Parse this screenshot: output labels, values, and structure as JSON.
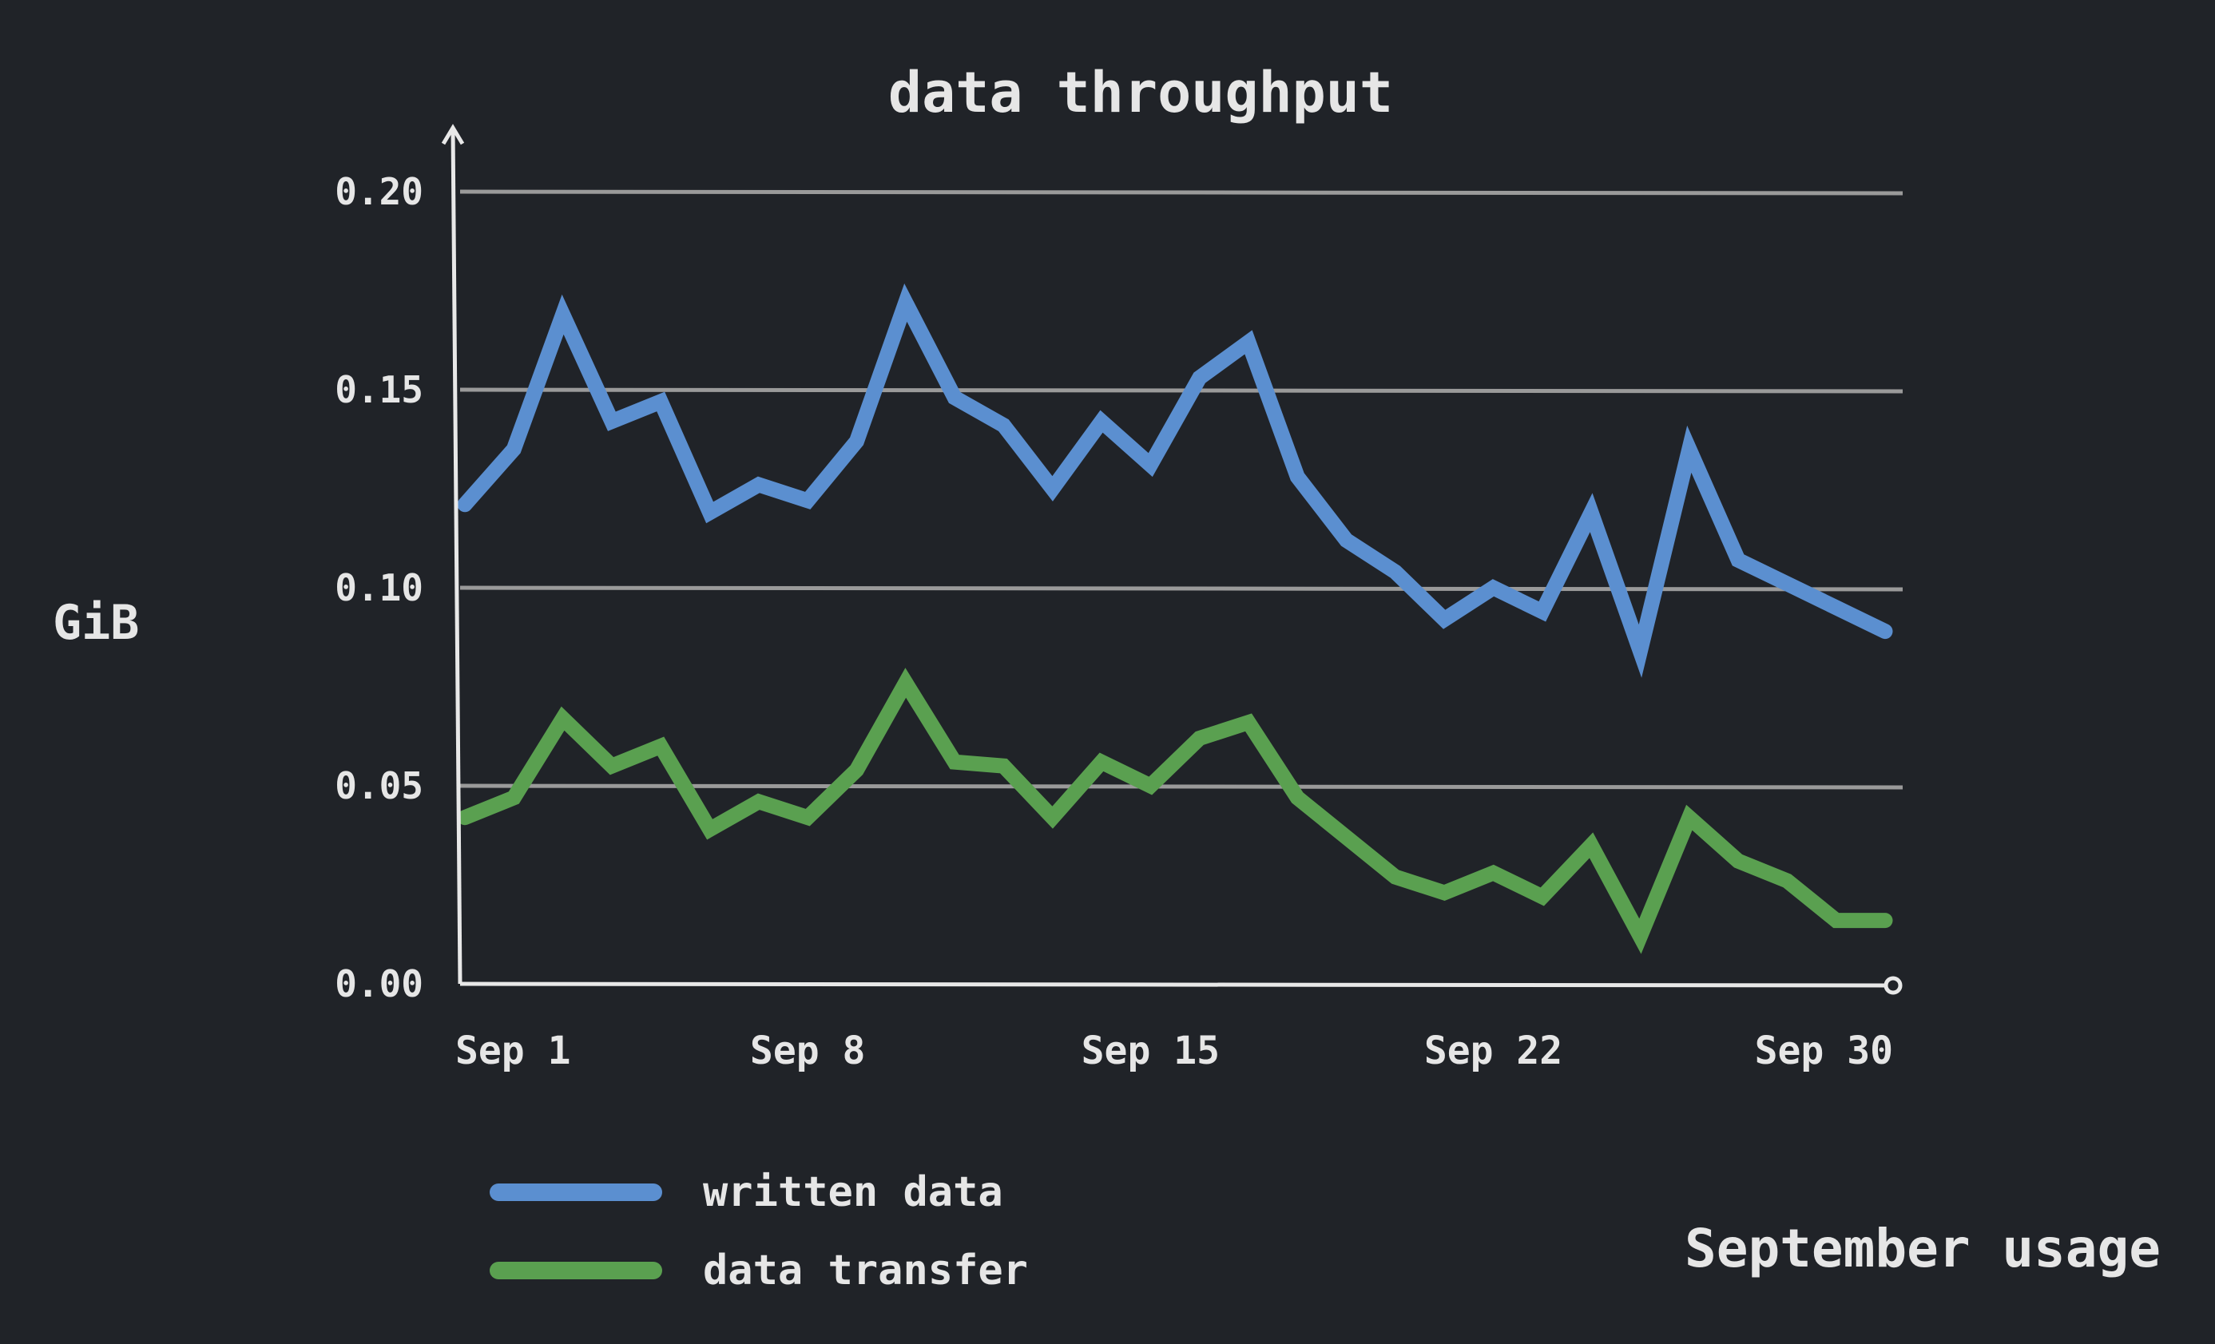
{
  "chart_data": {
    "type": "line",
    "title": "data throughput",
    "ylabel": "GiB",
    "xlabel": "",
    "caption": "September usage",
    "ylim": [
      0,
      0.2
    ],
    "yticks": [
      "0.00",
      "0.05",
      "0.10",
      "0.15",
      "0.20"
    ],
    "ytick_values": [
      0,
      0.05,
      0.1,
      0.15,
      0.2
    ],
    "xticks": [
      {
        "label": "Sep 1",
        "day": 1
      },
      {
        "label": "Sep 8",
        "day": 8
      },
      {
        "label": "Sep 15",
        "day": 15
      },
      {
        "label": "Sep 22",
        "day": 22
      },
      {
        "label": "Sep 30",
        "day": 30
      }
    ],
    "grid": true,
    "legend_position": "bottom-left",
    "x": [
      "Sep 1",
      "Sep 2",
      "Sep 3",
      "Sep 4",
      "Sep 5",
      "Sep 6",
      "Sep 7",
      "Sep 8",
      "Sep 9",
      "Sep 10",
      "Sep 11",
      "Sep 12",
      "Sep 13",
      "Sep 14",
      "Sep 15",
      "Sep 16",
      "Sep 17",
      "Sep 18",
      "Sep 19",
      "Sep 20",
      "Sep 21",
      "Sep 22",
      "Sep 23",
      "Sep 24",
      "Sep 25",
      "Sep 26",
      "Sep 27",
      "Sep 28",
      "Sep 29",
      "Sep 30"
    ],
    "series": [
      {
        "name": "written data",
        "color": "#5b8fd0",
        "values": [
          0.121,
          0.135,
          0.169,
          0.142,
          0.147,
          0.119,
          0.126,
          0.122,
          0.137,
          0.172,
          0.148,
          0.141,
          0.125,
          0.142,
          0.131,
          0.153,
          0.162,
          0.128,
          0.112,
          0.104,
          0.092,
          0.1,
          0.094,
          0.119,
          0.084,
          0.135,
          0.107,
          0.101,
          0.095,
          0.089
        ]
      },
      {
        "name": "data transfer",
        "color": "#5aa050",
        "values": [
          0.042,
          0.047,
          0.067,
          0.055,
          0.06,
          0.039,
          0.046,
          0.042,
          0.054,
          0.076,
          0.056,
          0.055,
          0.042,
          0.056,
          0.05,
          0.062,
          0.066,
          0.047,
          0.037,
          0.027,
          0.023,
          0.028,
          0.022,
          0.035,
          0.012,
          0.042,
          0.031,
          0.026,
          0.016,
          0.016
        ]
      }
    ]
  }
}
